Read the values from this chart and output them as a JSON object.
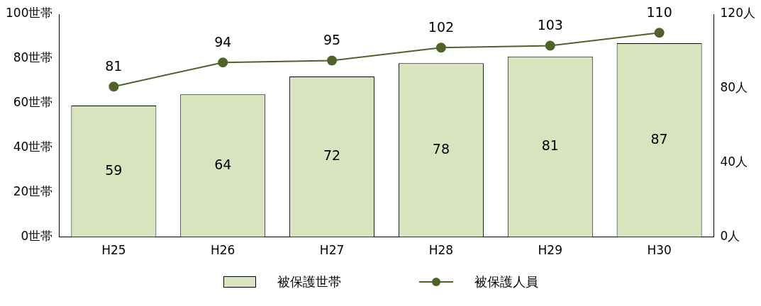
{
  "chart_data": {
    "type": "bar",
    "categories": [
      "H25",
      "H26",
      "H27",
      "H28",
      "H29",
      "H30"
    ],
    "series": [
      {
        "name": "被保護世帯",
        "color": "#d7e4bd",
        "values": [
          59,
          64,
          72,
          78,
          81,
          87
        ]
      },
      {
        "name": "被保護人員",
        "type": "line",
        "axis": "y2",
        "color": "#4f6228",
        "marker": "circle",
        "values": [
          81,
          94,
          95,
          102,
          103,
          110
        ]
      }
    ],
    "ylim": [
      0,
      100
    ],
    "yticks": [
      {
        "value": 0,
        "label": "0世帯"
      },
      {
        "value": 20,
        "label": "20世帯"
      },
      {
        "value": 40,
        "label": "40世帯"
      },
      {
        "value": 60,
        "label": "60世帯"
      },
      {
        "value": 80,
        "label": "80世帯"
      },
      {
        "value": 100,
        "label": "100世帯"
      }
    ],
    "y2lim": [
      0,
      120
    ],
    "y2ticks": [
      {
        "value": 0,
        "label": "0人"
      },
      {
        "value": 40,
        "label": "40人"
      },
      {
        "value": 80,
        "label": "80人"
      },
      {
        "value": 120,
        "label": "120人"
      }
    ],
    "data_labels": true,
    "grid": false,
    "legend": "bottom"
  }
}
